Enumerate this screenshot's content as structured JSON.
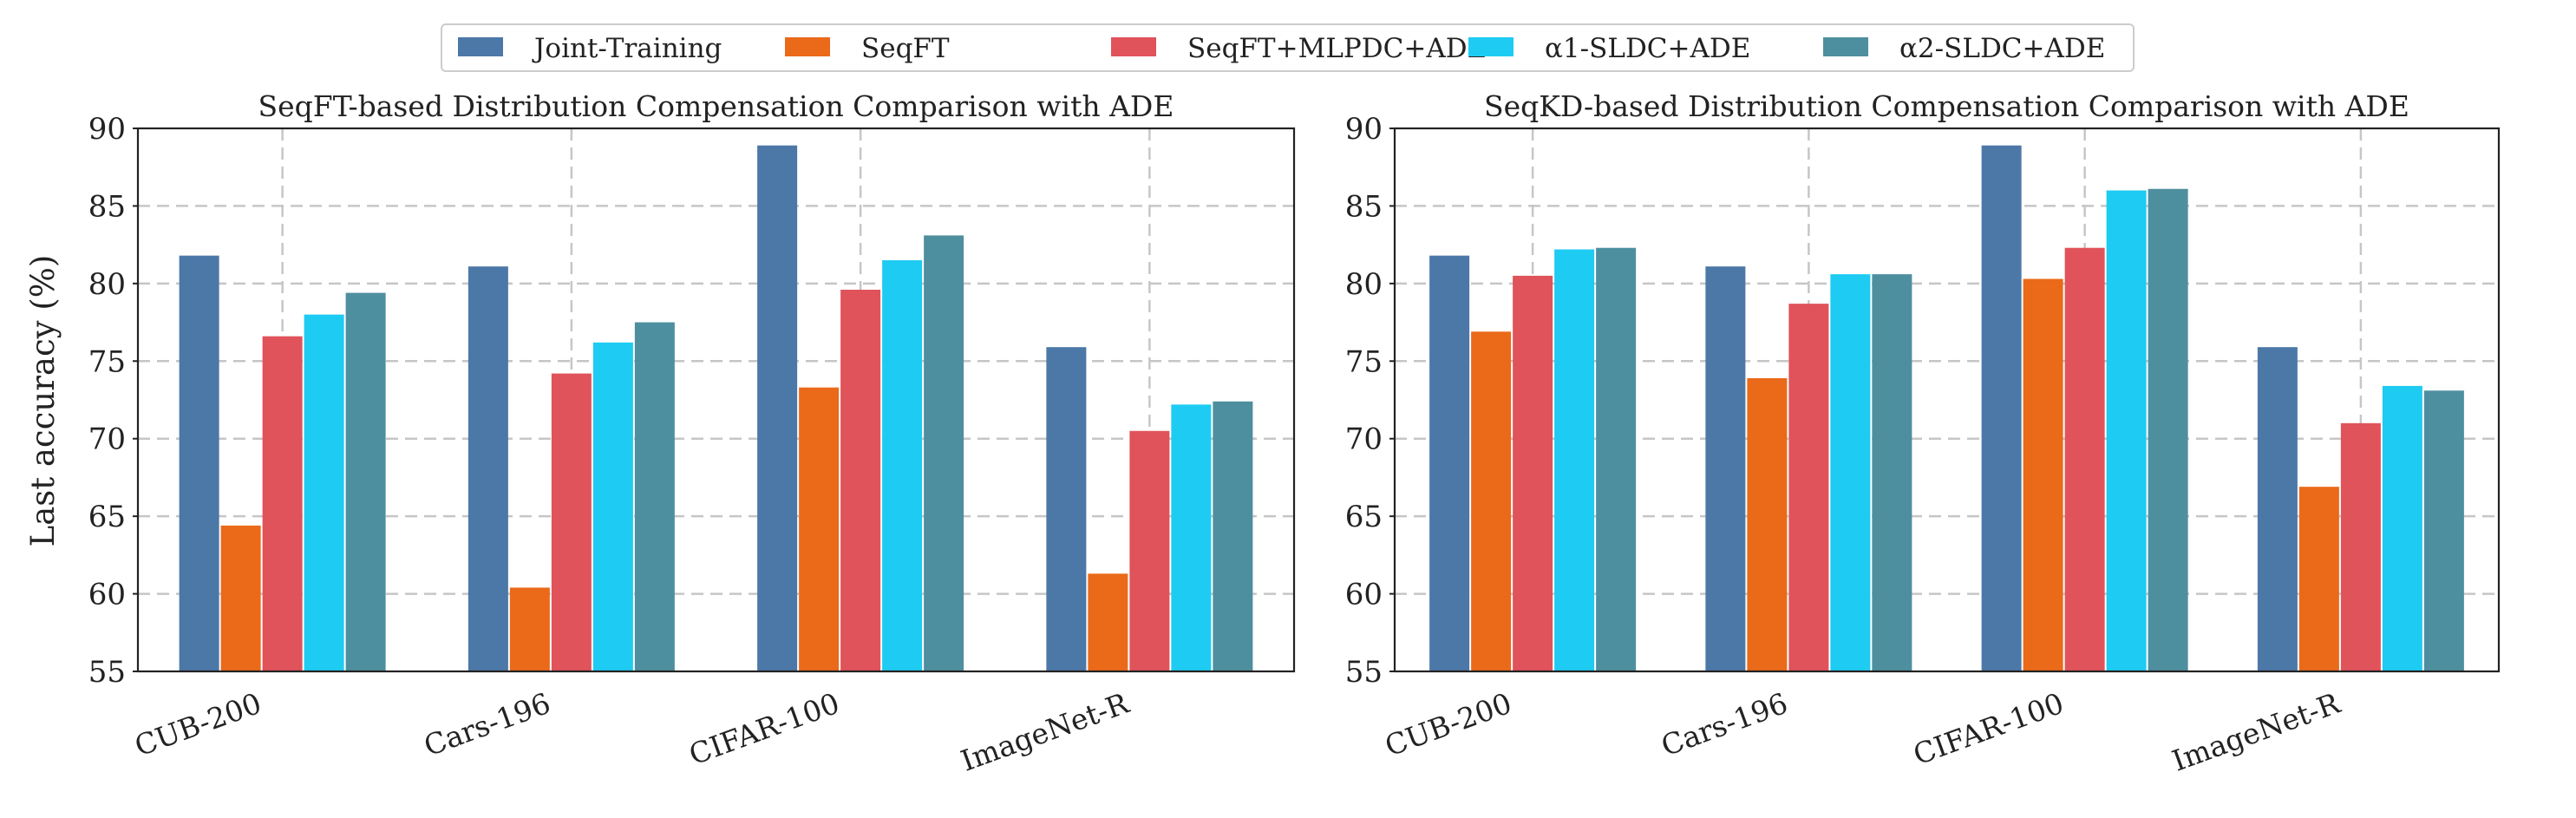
{
  "legend": {
    "items": [
      {
        "name": "Joint-Training",
        "color": "#4C78A8"
      },
      {
        "name": "SeqFT",
        "color": "#EA6A1A"
      },
      {
        "name": "SeqFT+MLPDC+ADE",
        "color": "#E0535A"
      },
      {
        "name": "α1-SLDC+ADE",
        "color": "#1ECBF2"
      },
      {
        "name": "α2-SLDC+ADE",
        "color": "#4E8F9F"
      }
    ]
  },
  "y_axis_label": "Last accuracy (%)",
  "chart_data": [
    {
      "type": "bar",
      "title": "SeqFT-based Distribution Compensation Comparison with ADE",
      "categories": [
        "CUB-200",
        "Cars-196",
        "CIFAR-100",
        "ImageNet-R"
      ],
      "ylabel": "Last accuracy (%)",
      "ylim": [
        55,
        90
      ],
      "yticks": [
        55,
        60,
        65,
        70,
        75,
        80,
        85,
        90
      ],
      "grid": true,
      "series": [
        {
          "name": "Joint-Training",
          "values": [
            81.8,
            81.1,
            88.9,
            75.9
          ]
        },
        {
          "name": "SeqFT",
          "values": [
            64.4,
            60.4,
            73.3,
            61.3
          ]
        },
        {
          "name": "SeqFT+MLPDC+ADE",
          "values": [
            76.6,
            74.2,
            79.6,
            70.5
          ]
        },
        {
          "name": "α1-SLDC+ADE",
          "values": [
            78.0,
            76.2,
            81.5,
            72.2
          ]
        },
        {
          "name": "α2-SLDC+ADE",
          "values": [
            79.4,
            77.5,
            83.1,
            72.4
          ]
        }
      ]
    },
    {
      "type": "bar",
      "title": "SeqKD-based Distribution Compensation Comparison with ADE",
      "categories": [
        "CUB-200",
        "Cars-196",
        "CIFAR-100",
        "ImageNet-R"
      ],
      "ylabel": "",
      "ylim": [
        55,
        90
      ],
      "yticks": [
        55,
        60,
        65,
        70,
        75,
        80,
        85,
        90
      ],
      "grid": true,
      "series": [
        {
          "name": "Joint-Training",
          "values": [
            81.8,
            81.1,
            88.9,
            75.9
          ]
        },
        {
          "name": "SeqFT",
          "values": [
            76.9,
            73.9,
            80.3,
            66.9
          ]
        },
        {
          "name": "SeqFT+MLPDC+ADE",
          "values": [
            80.5,
            78.7,
            82.3,
            71.0
          ]
        },
        {
          "name": "α1-SLDC+ADE",
          "values": [
            82.2,
            80.6,
            86.0,
            73.4
          ]
        },
        {
          "name": "α2-SLDC+ADE",
          "values": [
            82.3,
            80.6,
            86.1,
            73.1
          ]
        }
      ]
    }
  ]
}
